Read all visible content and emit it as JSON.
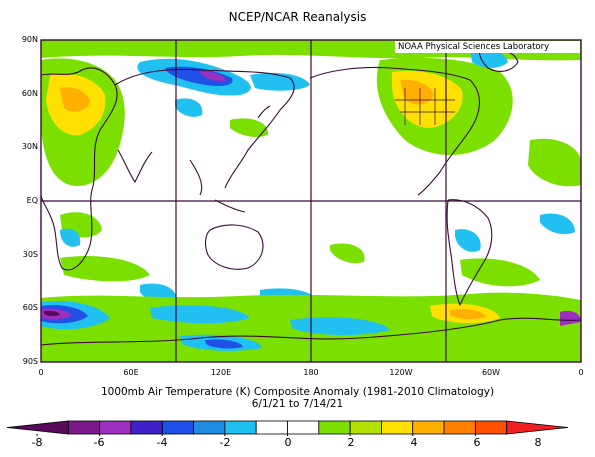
{
  "header": {
    "title": "NCEP/NCAR Reanalysis"
  },
  "map": {
    "credit": "NOAA Physical Sciences Laboratory",
    "lat_labels": [
      "90N",
      "60N",
      "30N",
      "EQ",
      "30S",
      "60S",
      "90S"
    ],
    "lon_labels": [
      "0",
      "60E",
      "120E",
      "180",
      "120W",
      "60W",
      "0"
    ],
    "frame_color": "#3a0a3a"
  },
  "caption": {
    "line1": "1000mb Air Temperature (K) Composite Anomaly (1981-2010 Climatology)",
    "line2": "6/1/21 to 7/14/21"
  },
  "colorbar": {
    "labels": [
      "-8",
      "-6",
      "-4",
      "-2",
      "0",
      "2",
      "4",
      "6",
      "8"
    ],
    "colors": [
      "#5a0a5a",
      "#7a1a8a",
      "#9b30c0",
      "#4020c8",
      "#2050e8",
      "#1e8ce0",
      "#20c0f0",
      "#ffffff",
      "#ffffff",
      "#7be000",
      "#b4e000",
      "#ffe000",
      "#ffb000",
      "#ff8000",
      "#ff5000",
      "#f02020"
    ]
  }
}
